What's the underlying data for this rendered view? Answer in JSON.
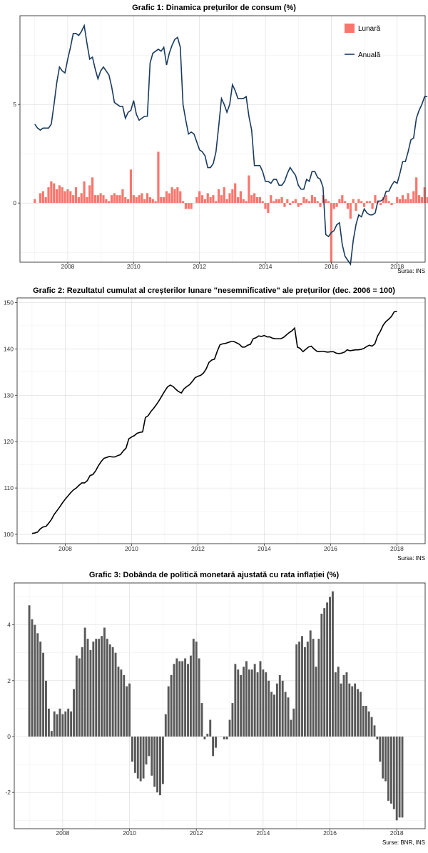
{
  "chart_data": [
    {
      "type": "bar+line",
      "title": "Grafic 1: Dinamica prețurilor de consum (%)",
      "source": "Sursa: INS",
      "x_start": "2007-01",
      "x_ticks": [
        "2008",
        "2010",
        "2012",
        "2014",
        "2016",
        "2018"
      ],
      "y_ticks": [
        "0",
        "5"
      ],
      "ylim": [
        -3.0,
        9.5
      ],
      "legend_position": "top-right",
      "colors": {
        "Lunară": "#f8766d",
        "Anuală": "#1a3a5e"
      },
      "series": [
        {
          "name": "Lunară",
          "type": "bar",
          "values": [
            0.2,
            0.0,
            0.5,
            0.6,
            0.3,
            0.8,
            1.1,
            1.0,
            0.7,
            0.9,
            0.8,
            0.6,
            0.7,
            0.6,
            0.4,
            0.8,
            0.3,
            0.5,
            1.1,
            0.3,
            0.9,
            1.3,
            0.4,
            0.4,
            0.5,
            0.4,
            0.2,
            0.1,
            0.4,
            0.5,
            0.4,
            0.4,
            0.7,
            0.3,
            0.2,
            1.7,
            0.4,
            0.3,
            0.4,
            0.5,
            0.2,
            0.5,
            0.3,
            0.2,
            0.1,
            2.6,
            0.3,
            0.3,
            0.6,
            0.5,
            0.8,
            0.7,
            0.8,
            0.6,
            0.1,
            -0.3,
            -0.3,
            -0.3,
            0.0,
            0.3,
            0.6,
            0.4,
            0.2,
            0.5,
            0.3,
            0.4,
            0.1,
            0.7,
            0.4,
            0.8,
            0.2,
            0.5,
            0.7,
            1.0,
            0.3,
            0.6,
            0.2,
            0.1,
            1.4,
            0.4,
            0.5,
            0.3,
            0.3,
            0.1,
            -0.3,
            -0.5,
            0.4,
            0.1,
            0.2,
            0.2,
            0.3,
            -0.2,
            0.2,
            -0.1,
            0.1,
            0.2,
            -0.2,
            -0.1,
            0.3,
            0.2,
            0.1,
            0.4,
            0.3,
            0.1,
            -0.2,
            0.4,
            0.2,
            0.1,
            -3.0,
            -0.3,
            -0.2,
            0.2,
            0.4,
            0.1,
            -0.3,
            -0.8,
            0.2,
            -0.4,
            0.2,
            0.1,
            -0.2,
            0.1,
            0.1,
            -0.3,
            0.4,
            0.1,
            -0.1,
            0.3,
            0.4,
            0.1,
            -0.1,
            0.0,
            0.3,
            0.2,
            0.4,
            0.2,
            0.5,
            0.2,
            0.6,
            1.3,
            0.4,
            0.3,
            0.8,
            0.3,
            0.3,
            0.6,
            0.5
          ]
        },
        {
          "name": "Anuală",
          "type": "line",
          "values": [
            4.0,
            3.8,
            3.7,
            3.8,
            3.8,
            3.8,
            4.0,
            5.0,
            6.1,
            6.9,
            6.7,
            6.6,
            7.3,
            7.9,
            8.6,
            8.6,
            8.5,
            8.7,
            9.0,
            8.1,
            7.3,
            7.4,
            6.8,
            6.3,
            6.7,
            6.9,
            6.7,
            6.5,
            5.9,
            5.1,
            5.0,
            4.9,
            4.9,
            4.3,
            4.6,
            4.7,
            5.2,
            4.5,
            4.2,
            4.3,
            4.4,
            4.4,
            7.1,
            7.6,
            7.7,
            7.8,
            7.7,
            7.9,
            7.0,
            7.6,
            8.0,
            8.3,
            8.4,
            7.9,
            5.0,
            4.2,
            3.5,
            3.6,
            3.5,
            3.1,
            2.7,
            2.6,
            2.4,
            1.8,
            1.8,
            2.0,
            2.6,
            3.9,
            5.3,
            5.0,
            4.6,
            5.0,
            6.0,
            5.7,
            5.3,
            5.3,
            5.3,
            5.4,
            4.4,
            3.7,
            1.9,
            1.9,
            1.9,
            1.6,
            1.1,
            1.1,
            1.0,
            1.2,
            1.2,
            0.9,
            0.9,
            1.1,
            1.5,
            1.8,
            1.6,
            1.4,
            0.9,
            0.7,
            0.7,
            1.2,
            1.1,
            1.6,
            1.6,
            1.3,
            1.2,
            0.8,
            -1.6,
            -1.7,
            -1.5,
            -1.4,
            -1.1,
            -1.0,
            -2.1,
            -2.7,
            -2.9,
            -3.1,
            -1.9,
            -1.1,
            -0.6,
            -0.7,
            -0.3,
            -0.5,
            -0.6,
            -0.6,
            -0.5,
            0.1,
            0.1,
            0.2,
            0.6,
            0.6,
            0.9,
            1.1,
            1.0,
            1.5,
            2.1,
            2.1,
            2.6,
            3.2,
            3.3,
            4.3,
            4.7,
            5.0,
            5.4,
            5.4
          ]
        }
      ]
    },
    {
      "type": "line",
      "title": "Grafic 2: Rezultatul cumulat al creșterilor lunare \"nesemnificative\" ale prețurilor (dec. 2006 = 100)",
      "source": "Sursa: INS",
      "x_start": "2007-01",
      "x_ticks": [
        "2008",
        "2010",
        "2012",
        "2014",
        "2016",
        "2018"
      ],
      "y_ticks": [
        "100",
        "110",
        "120",
        "130",
        "140",
        "150"
      ],
      "ylim": [
        98,
        151
      ],
      "colors": {
        "line": "#000000"
      },
      "series": [
        {
          "values": [
            100.2,
            100.3,
            100.5,
            101.2,
            101.6,
            101.7,
            102.4,
            103.2,
            104.3,
            105.1,
            105.9,
            106.8,
            107.6,
            108.3,
            109.0,
            109.6,
            110.0,
            110.6,
            111.1,
            111.1,
            111.6,
            112.7,
            112.9,
            113.7,
            114.8,
            115.7,
            116.4,
            116.6,
            116.8,
            116.7,
            116.7,
            117.0,
            117.2,
            118.0,
            118.6,
            120.6,
            121.0,
            121.3,
            121.8,
            122.0,
            122.1,
            125.2,
            125.6,
            126.5,
            127.2,
            128.0,
            128.9,
            129.9,
            130.9,
            131.8,
            132.2,
            131.9,
            131.3,
            130.8,
            130.5,
            131.4,
            131.9,
            132.3,
            133.0,
            133.8,
            134.1,
            134.3,
            134.8,
            135.7,
            137.1,
            137.6,
            137.8,
            139.5,
            140.9,
            141.1,
            141.2,
            141.4,
            141.6,
            141.6,
            141.3,
            141.0,
            140.4,
            140.4,
            140.8,
            141.0,
            142.2,
            142.4,
            142.8,
            142.7,
            142.9,
            142.6,
            142.6,
            142.3,
            142.2,
            142.2,
            142.2,
            142.5,
            143.0,
            143.5,
            143.9,
            144.5,
            140.4,
            140.1,
            139.4,
            139.9,
            140.4,
            140.6,
            140.0,
            139.5,
            139.4,
            139.5,
            139.4,
            139.3,
            139.4,
            139.4,
            139.1,
            139.0,
            139.1,
            139.3,
            139.8,
            139.6,
            139.7,
            139.8,
            139.8,
            139.9,
            140.1,
            140.5,
            140.8,
            140.6,
            141.1,
            142.8,
            143.8,
            145.1,
            145.9,
            146.4,
            147.0,
            148.0,
            148.1
          ]
        }
      ]
    },
    {
      "type": "bar",
      "title": "Grafic 3: Dobânda de politică monetară ajustată cu rata inflației (%)",
      "source": "Surse: BNR, INS",
      "x_start": "2007-01",
      "x_ticks": [
        "2008",
        "2010",
        "2012",
        "2014",
        "2016",
        "2018"
      ],
      "y_ticks": [
        "-2",
        "0",
        "2",
        "4"
      ],
      "ylim": [
        -3.3,
        5.5
      ],
      "colors": {
        "bar": "#595959"
      },
      "series": [
        {
          "values": [
            4.7,
            4.2,
            4.0,
            3.7,
            3.4,
            3.0,
            2.0,
            1.0,
            0.2,
            0.9,
            0.8,
            1.0,
            0.8,
            0.9,
            1.0,
            0.9,
            1.7,
            2.9,
            2.8,
            3.2,
            3.9,
            3.5,
            3.1,
            3.4,
            3.5,
            3.5,
            3.6,
            3.9,
            3.5,
            3.3,
            3.2,
            3.0,
            2.5,
            2.4,
            2.2,
            1.8,
            1.9,
            -0.9,
            -1.3,
            -1.5,
            -1.6,
            -1.5,
            -1.0,
            -0.7,
            -1.4,
            -1.8,
            -2.0,
            -2.1,
            -1.7,
            0.8,
            1.8,
            2.2,
            2.6,
            2.8,
            2.7,
            2.7,
            2.8,
            2.6,
            2.9,
            3.5,
            3.4,
            2.8,
            1.2,
            -0.1,
            0.1,
            0.6,
            -0.7,
            -0.4,
            0.0,
            0.0,
            -0.1,
            -0.1,
            0.6,
            1.2,
            2.6,
            2.4,
            2.2,
            2.5,
            2.7,
            2.4,
            2.4,
            2.6,
            2.3,
            2.7,
            2.4,
            2.3,
            2.0,
            1.6,
            1.5,
            1.9,
            2.2,
            2.0,
            1.6,
            1.4,
            0.6,
            1.0,
            3.3,
            3.4,
            3.6,
            3.2,
            3.4,
            3.8,
            3.5,
            2.5,
            3.5,
            4.4,
            4.6,
            4.8,
            5.0,
            5.2,
            2.3,
            2.5,
            1.9,
            2.2,
            2.3,
            1.9,
            1.8,
            1.9,
            1.7,
            1.6,
            1.1,
            1.1,
            0.9,
            0.7,
            0.4,
            -0.1,
            -0.9,
            -1.5,
            -1.6,
            -2.3,
            -2.4,
            -2.6,
            -3.0,
            -2.9,
            -2.9
          ]
        }
      ]
    }
  ]
}
